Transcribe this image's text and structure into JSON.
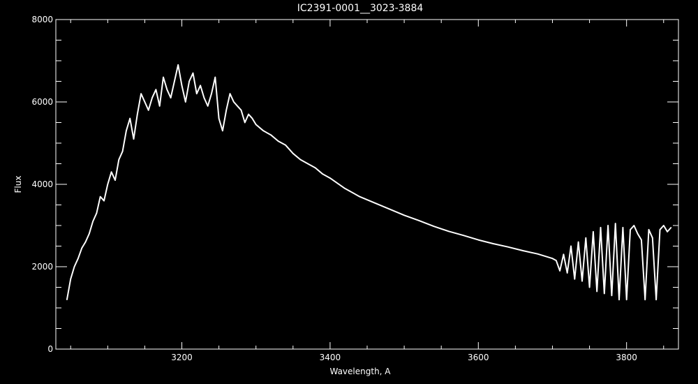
{
  "chart_data": {
    "type": "line",
    "title": "IC2391-0001__3023-3884",
    "xlabel": "Wavelength, A",
    "ylabel": "Flux",
    "xlim": [
      3030,
      3870
    ],
    "ylim": [
      0,
      8000
    ],
    "x_ticks": [
      3200,
      3400,
      3600,
      3800
    ],
    "y_ticks": [
      0,
      2000,
      4000,
      6000,
      8000
    ],
    "x_tick_labels": [
      "3200",
      "3400",
      "3600",
      "3800"
    ],
    "y_tick_labels": [
      "0",
      "2000",
      "4000",
      "6000",
      "8000"
    ],
    "grid": false,
    "colors": {
      "background": "#000000",
      "foreground": "#ffffff"
    },
    "series": [
      {
        "x": [
          3045,
          3050,
          3055,
          3060,
          3065,
          3070,
          3075,
          3080,
          3085,
          3090,
          3095,
          3100,
          3105,
          3110,
          3115,
          3120,
          3125,
          3130,
          3135,
          3140,
          3145,
          3150,
          3155,
          3160,
          3165,
          3170,
          3175,
          3180,
          3185,
          3190,
          3195,
          3200,
          3205,
          3210,
          3215,
          3220,
          3225,
          3230,
          3235,
          3240,
          3245,
          3250,
          3255,
          3260,
          3265,
          3270,
          3275,
          3280,
          3285,
          3290,
          3295,
          3300,
          3310,
          3320,
          3330,
          3340,
          3350,
          3360,
          3370,
          3380,
          3390,
          3400,
          3420,
          3440,
          3460,
          3480,
          3500,
          3520,
          3540,
          3560,
          3580,
          3600,
          3620,
          3640,
          3660,
          3680,
          3700,
          3705,
          3710,
          3715,
          3720,
          3725,
          3730,
          3735,
          3740,
          3745,
          3750,
          3755,
          3760,
          3765,
          3770,
          3775,
          3780,
          3785,
          3790,
          3795,
          3800,
          3805,
          3810,
          3815,
          3820,
          3825,
          3830,
          3835,
          3840,
          3845,
          3850,
          3855,
          3860
        ],
        "y": [
          1200,
          1700,
          2000,
          2200,
          2450,
          2600,
          2800,
          3100,
          3300,
          3700,
          3600,
          4000,
          4300,
          4100,
          4600,
          4800,
          5300,
          5600,
          5100,
          5700,
          6200,
          6000,
          5800,
          6100,
          6300,
          5900,
          6600,
          6300,
          6100,
          6500,
          6900,
          6400,
          6000,
          6500,
          6700,
          6200,
          6400,
          6100,
          5900,
          6200,
          6600,
          5600,
          5300,
          5800,
          6200,
          6000,
          5900,
          5800,
          5500,
          5700,
          5600,
          5450,
          5300,
          5200,
          5050,
          4950,
          4750,
          4600,
          4500,
          4400,
          4250,
          4150,
          3900,
          3700,
          3550,
          3400,
          3250,
          3120,
          2980,
          2860,
          2760,
          2650,
          2560,
          2480,
          2390,
          2310,
          2200,
          2150,
          1900,
          2300,
          1850,
          2500,
          1700,
          2600,
          1650,
          2700,
          1500,
          2850,
          1400,
          2950,
          1350,
          3000,
          1300,
          3050,
          1200,
          2950,
          1200,
          2900,
          3000,
          2800,
          2650,
          1200,
          2900,
          2700,
          1200,
          2900,
          3000,
          2850,
          2950
        ]
      }
    ]
  }
}
